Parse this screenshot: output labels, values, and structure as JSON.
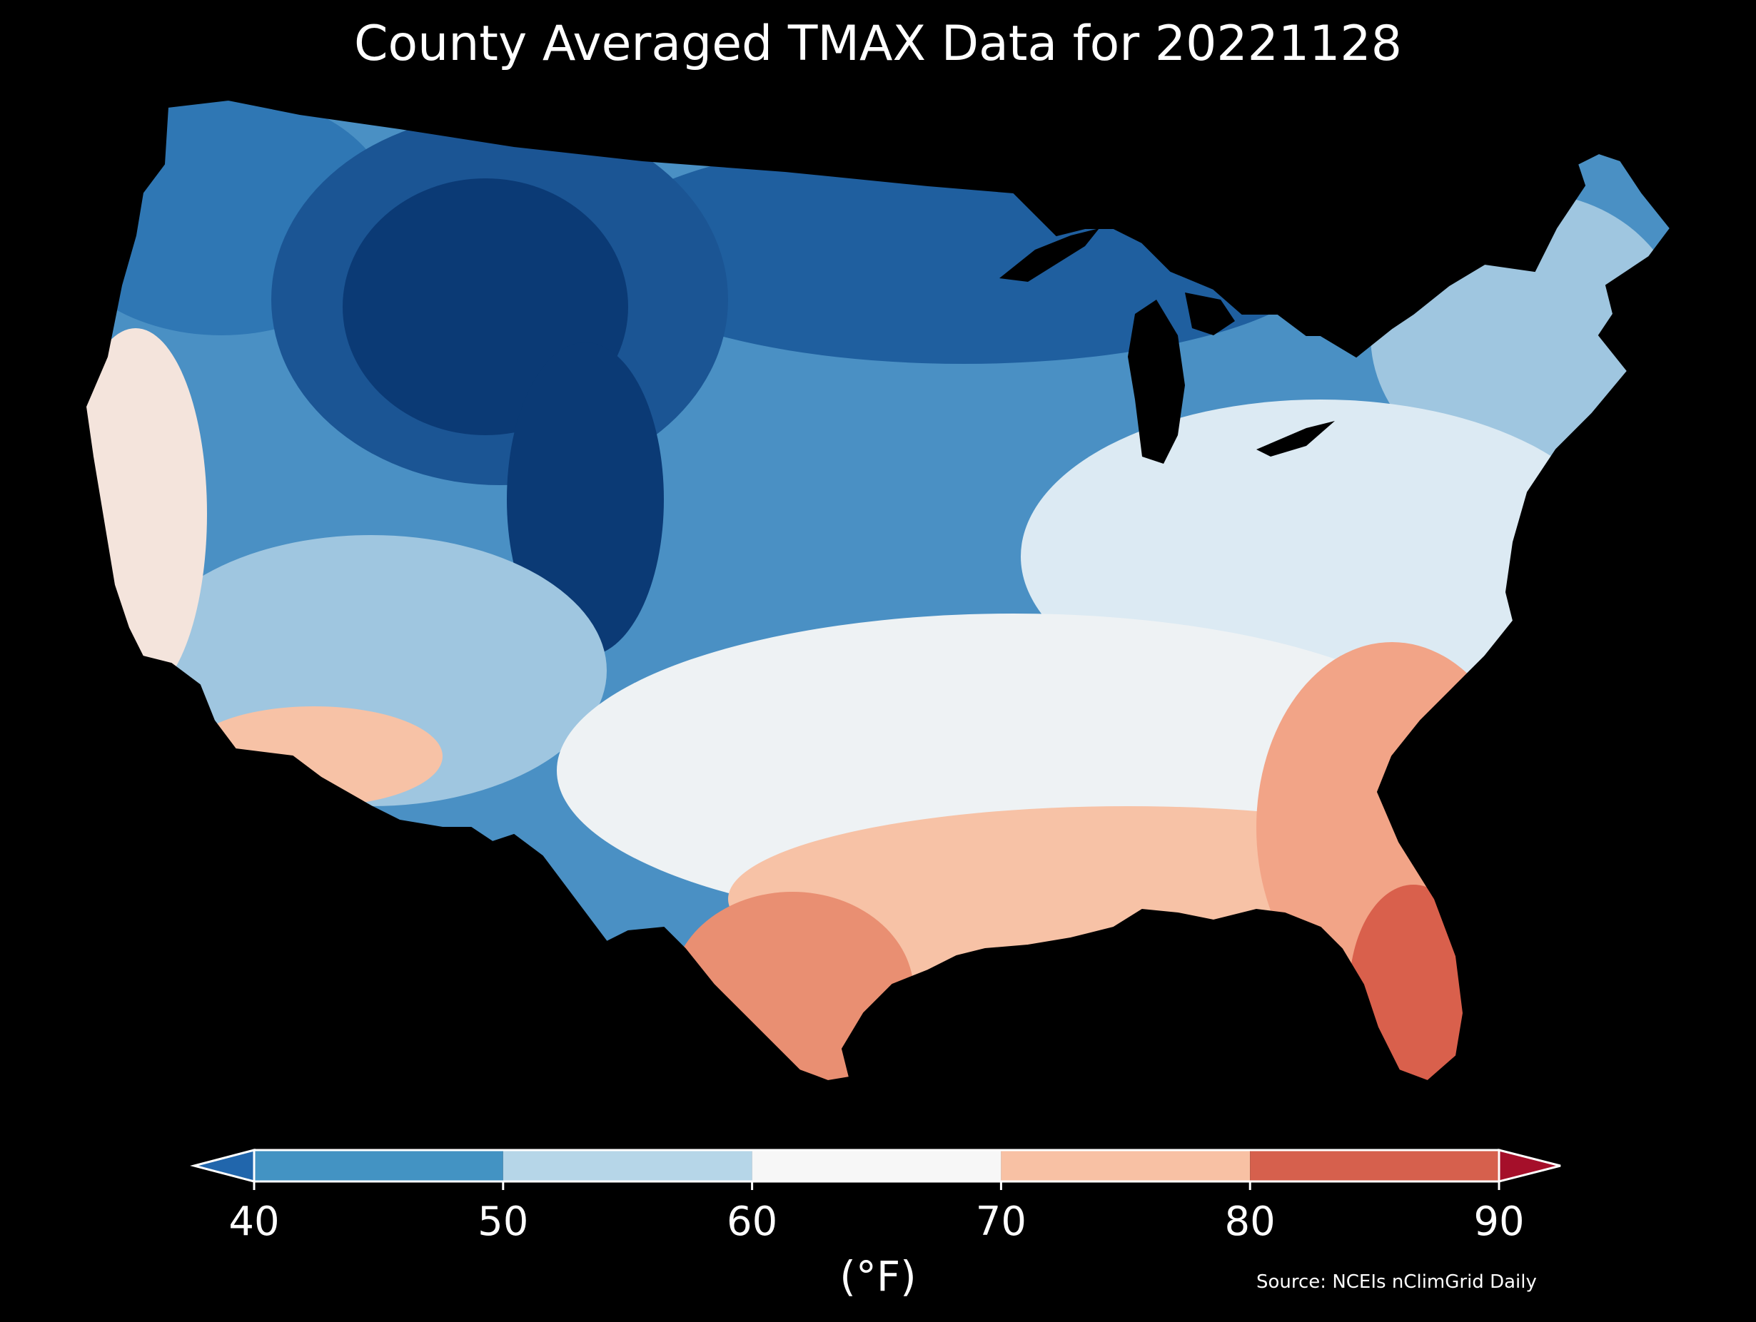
{
  "title": "County Averaged TMAX Data for 20221128",
  "colorbar": {
    "ticks": [
      "40",
      "50",
      "60",
      "70",
      "80",
      "90"
    ],
    "bins": [
      {
        "range": [
          40,
          50
        ],
        "color": "#4393c3"
      },
      {
        "range": [
          50,
          60
        ],
        "color": "#b6d6e8"
      },
      {
        "range": [
          60,
          70
        ],
        "color": "#f7f7f7"
      },
      {
        "range": [
          70,
          80
        ],
        "color": "#f8c1a4"
      },
      {
        "range": [
          80,
          90
        ],
        "color": "#d6604d"
      }
    ],
    "under_color": "#2166ac",
    "over_color": "#a50f2a",
    "extend": "both",
    "units": "(°F)"
  },
  "source": "Source: NCEIs nClimGrid Daily",
  "map": {
    "region": "Contiguous United States",
    "variable": "TMAX",
    "date": "20221128",
    "aggregation": "county",
    "background": "#000000",
    "regions": [
      {
        "name": "northern-rockies-plains",
        "shade": "#0b3a75",
        "approx_tmax_f": 32
      },
      {
        "name": "upper-midwest-north-plains",
        "shade": "#1f5f9f",
        "approx_tmax_f": 40
      },
      {
        "name": "pacific-northwest",
        "shade": "#2f77b4",
        "approx_tmax_f": 43
      },
      {
        "name": "central-plains-great-lakes",
        "shade": "#4a90c4",
        "approx_tmax_f": 48
      },
      {
        "name": "northeast",
        "shade": "#9fc6e0",
        "approx_tmax_f": 53
      },
      {
        "name": "mid-atlantic-ohio-valley",
        "shade": "#dceaf3",
        "approx_tmax_f": 58
      },
      {
        "name": "southern-plains-tennessee",
        "shade": "#f1f3f4",
        "approx_tmax_f": 63
      },
      {
        "name": "california-coast",
        "shade": "#f4e4dc",
        "approx_tmax_f": 67
      },
      {
        "name": "gulf-coast-southeast",
        "shade": "#f7c2a6",
        "approx_tmax_f": 73
      },
      {
        "name": "south-texas",
        "shade": "#e98f72",
        "approx_tmax_f": 79
      },
      {
        "name": "florida-peninsula",
        "shade": "#d9604c",
        "approx_tmax_f": 83
      }
    ]
  }
}
